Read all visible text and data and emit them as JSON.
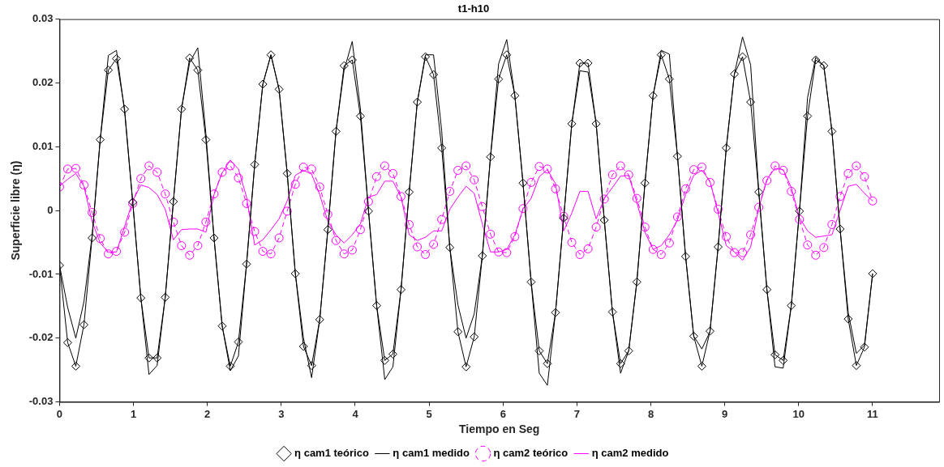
{
  "chart_data": {
    "type": "line",
    "title": "t1-h10",
    "xlabel": "Tiempo en Seg",
    "ylabel": "Superficie libre (η)",
    "x": [
      0,
      0.11,
      0.22,
      0.33,
      0.44,
      0.55,
      0.66,
      0.77,
      0.88,
      0.99,
      1.1,
      1.21,
      1.32,
      1.43,
      1.54,
      1.65,
      1.76,
      1.87,
      1.98,
      2.09,
      2.2,
      2.31,
      2.42,
      2.53,
      2.64,
      2.75,
      2.86,
      2.97,
      3.08,
      3.19,
      3.3,
      3.41,
      3.52,
      3.63,
      3.74,
      3.85,
      3.96,
      4.07,
      4.18,
      4.29,
      4.4,
      4.51,
      4.62,
      4.73,
      4.84,
      4.95,
      5.06,
      5.17,
      5.28,
      5.39,
      5.5,
      5.61,
      5.72,
      5.83,
      5.94,
      6.05,
      6.16,
      6.27,
      6.38,
      6.49,
      6.6,
      6.71,
      6.82,
      6.93,
      7.04,
      7.15,
      7.26,
      7.37,
      7.48,
      7.59,
      7.7,
      7.81,
      7.92,
      8.03,
      8.14,
      8.25,
      8.36,
      8.47,
      8.58,
      8.69,
      8.8,
      8.91,
      9.02,
      9.13,
      9.24,
      9.35,
      9.46,
      9.57,
      9.68,
      9.79,
      9.9,
      10.01,
      10.12,
      10.23,
      10.34,
      10.45,
      10.56,
      10.67,
      10.78,
      10.89,
      11
    ],
    "series": [
      {
        "name": "η cam1 teórico",
        "color": "#000000",
        "marker": "diamond",
        "line_style": "solid",
        "values": [
          -0.0086,
          -0.0207,
          -0.0244,
          -0.0179,
          -0.0043,
          0.0111,
          0.022,
          0.0238,
          0.0159,
          0.0013,
          -0.0137,
          -0.0231,
          -0.0231,
          -0.0136,
          0.0014,
          0.0159,
          0.0239,
          0.022,
          0.0111,
          -0.0043,
          -0.0181,
          -0.0244,
          -0.0206,
          -0.0084,
          0.0072,
          0.0198,
          0.0244,
          0.019,
          0.0058,
          -0.0099,
          -0.0213,
          -0.0243,
          -0.0171,
          -0.003,
          0.0124,
          0.0227,
          0.0236,
          0.0148,
          -0.0001,
          -0.0149,
          -0.0235,
          -0.0225,
          -0.0124,
          0.0029,
          0.017,
          0.0241,
          0.0213,
          0.0098,
          -0.0058,
          -0.019,
          -0.0245,
          -0.0198,
          -0.0071,
          0.0084,
          0.0206,
          0.0244,
          0.018,
          0.0043,
          -0.0112,
          -0.022,
          -0.024,
          -0.016,
          -0.0012,
          0.0136,
          0.0231,
          0.0231,
          0.0136,
          -0.0015,
          -0.0159,
          -0.024,
          -0.022,
          -0.0112,
          0.0043,
          0.018,
          0.0244,
          0.0206,
          0.0085,
          -0.0072,
          -0.0197,
          -0.0244,
          -0.0189,
          -0.0057,
          0.0098,
          0.0214,
          0.0241,
          0.017,
          0.0029,
          -0.0124,
          -0.0226,
          -0.0235,
          -0.0149,
          -0.0001,
          0.0148,
          0.0236,
          0.0227,
          0.0124,
          -0.0029,
          -0.017,
          -0.0243,
          -0.0214,
          -0.0099
        ]
      },
      {
        "name": "η cam1 medido",
        "color": "#000000",
        "marker": "none",
        "line_style": "solid",
        "values": [
          -0.0086,
          -0.0152,
          -0.02,
          -0.0143,
          -0.004,
          0.0111,
          0.0243,
          0.0251,
          0.0155,
          0.0013,
          -0.0137,
          -0.0257,
          -0.0243,
          -0.0136,
          0.0014,
          0.0159,
          0.0232,
          0.0255,
          0.012,
          -0.0043,
          -0.0181,
          -0.0251,
          -0.0228,
          -0.0084,
          0.0072,
          0.0198,
          0.0244,
          0.019,
          0.0058,
          -0.0099,
          -0.02,
          -0.0262,
          -0.0171,
          -0.003,
          0.0124,
          0.022,
          0.0265,
          0.016,
          -0.0001,
          -0.0149,
          -0.0265,
          -0.0245,
          -0.0124,
          0.0029,
          0.017,
          0.0244,
          0.0244,
          0.0125,
          -0.0058,
          -0.0148,
          -0.02,
          -0.0162,
          -0.0071,
          0.0084,
          0.023,
          0.0268,
          0.018,
          0.0043,
          -0.0112,
          -0.0255,
          -0.0274,
          -0.016,
          -0.0012,
          0.0136,
          0.0219,
          0.0217,
          0.0136,
          -0.0015,
          -0.0159,
          -0.0255,
          -0.022,
          -0.0112,
          0.0043,
          0.018,
          0.0251,
          0.0245,
          0.0085,
          -0.0072,
          -0.0197,
          -0.0217,
          -0.019,
          -0.0057,
          0.0098,
          0.0214,
          0.0272,
          0.0228,
          0.0029,
          -0.0124,
          -0.0245,
          -0.0247,
          -0.0149,
          -0.0001,
          0.0177,
          0.024,
          0.0227,
          0.0124,
          -0.0029,
          -0.016,
          -0.0224,
          -0.0211,
          -0.0099
        ]
      },
      {
        "name": "η cam2 teórico",
        "color": "#ff00ff",
        "marker": "circle",
        "line_style": "dashed",
        "values": [
          0.0037,
          0.0065,
          0.0066,
          0.004,
          -0.0003,
          -0.0044,
          -0.0068,
          -0.0064,
          -0.0034,
          0.0011,
          0.005,
          0.007,
          0.006,
          0.0026,
          -0.0018,
          -0.0055,
          -0.007,
          -0.0055,
          -0.0018,
          0.0026,
          0.006,
          0.007,
          0.0051,
          0.0011,
          -0.0033,
          -0.0064,
          -0.0068,
          -0.0043,
          -0.0001,
          0.0041,
          0.0068,
          0.0065,
          0.0037,
          -0.0006,
          -0.0047,
          -0.0068,
          -0.0062,
          -0.003,
          0.0014,
          0.0053,
          0.007,
          0.0058,
          0.0022,
          -0.0022,
          -0.0057,
          -0.0069,
          -0.0053,
          -0.0014,
          0.003,
          0.0063,
          0.007,
          0.0048,
          0.0006,
          -0.0037,
          -0.0065,
          -0.0066,
          -0.0041,
          0.0003,
          0.0044,
          0.0069,
          0.0065,
          0.0034,
          -0.0009,
          -0.005,
          -0.0069,
          -0.006,
          -0.0026,
          0.0018,
          0.0056,
          0.007,
          0.0056,
          0.0019,
          -0.0026,
          -0.0061,
          -0.0069,
          -0.0051,
          -0.001,
          0.0034,
          0.0064,
          0.0068,
          0.0044,
          0.0002,
          -0.0041,
          -0.0066,
          -0.0066,
          -0.0038,
          0.0005,
          0.0047,
          0.007,
          0.0063,
          0.003,
          -0.0014,
          -0.0054,
          -0.007,
          -0.0058,
          -0.0022,
          0.0022,
          0.0058,
          0.007,
          0.0053,
          0.0015
        ]
      },
      {
        "name": "η cam2 medido",
        "color": "#ff00ff",
        "marker": "none",
        "line_style": "solid",
        "values": [
          0.0038,
          0.0049,
          0.0058,
          0.0038,
          -0.0017,
          -0.0051,
          -0.0065,
          -0.0065,
          -0.0025,
          0.0015,
          0.004,
          0.0036,
          0.0025,
          0.0002,
          -0.0046,
          -0.003,
          -0.0029,
          -0.0029,
          -0.0034,
          0.0025,
          0.0059,
          0.0079,
          0.0065,
          0.0021,
          -0.0054,
          -0.0046,
          -0.003,
          -0.0013,
          0.0015,
          0.0055,
          0.0063,
          0.0057,
          0.0025,
          -0.0017,
          -0.0038,
          -0.0051,
          -0.0038,
          -0.0021,
          0.0021,
          0.0025,
          0.0046,
          0.0046,
          0.0021,
          -0.0038,
          -0.0047,
          -0.0042,
          -0.0032,
          -0.0032,
          0.0002,
          0.0021,
          0.0038,
          0.0027,
          -0.0021,
          -0.0065,
          -0.0065,
          -0.0061,
          -0.0038,
          0.0002,
          0.0019,
          0.0053,
          0.0064,
          0.0042,
          -0.0032,
          -0.0004,
          0.003,
          0.003,
          -0.0013,
          0.0019,
          0.0036,
          0.0054,
          0.0055,
          0.0013,
          -0.0034,
          -0.0061,
          -0.0055,
          -0.0038,
          -0.0015,
          0.0025,
          0.0055,
          0.0063,
          0.0046,
          -0.0004,
          -0.0055,
          -0.0065,
          -0.0078,
          -0.0057,
          0.0004,
          0.0049,
          0.0066,
          0.0064,
          0.0036,
          -0.0011,
          -0.0032,
          -0.0042,
          -0.004,
          -0.0038,
          0.0,
          0.0038,
          0.0041,
          0.0027,
          0.0015
        ]
      }
    ],
    "xlim": [
      0,
      11.9
    ],
    "xticks": [
      0,
      1,
      2,
      3,
      4,
      5,
      6,
      7,
      8,
      9,
      10,
      11
    ],
    "ylim": [
      -0.03,
      0.03
    ],
    "yticks": [
      -0.03,
      -0.02,
      -0.01,
      0,
      0.01,
      0.02,
      0.03
    ],
    "grid": false,
    "legend": "bottom"
  }
}
